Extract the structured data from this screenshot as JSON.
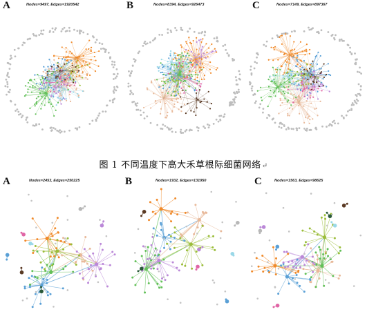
{
  "figure": {
    "caption": "图 1  不同温度下高大禾草根际细菌网络",
    "caption_end_mark": "↵",
    "module_colors": [
      "#5aa0d6",
      "#e8b99a",
      "#62c058",
      "#f08a2a",
      "#9bbd3a",
      "#bb88d8",
      "#5a3a24",
      "#e066a6",
      "#9ad8e8",
      "#2b5a3a",
      "#b8b8b8"
    ],
    "top_row": [
      {
        "label": "A",
        "stats": "Nodes=9497, Edges=1920542"
      },
      {
        "label": "B",
        "stats": "Nodes=8394, Edges=926473"
      },
      {
        "label": "C",
        "stats": "Nodes=7149, Edges=897367"
      }
    ],
    "bottom_row": [
      {
        "label": "A",
        "stats": "Nodes=2453, Edges=250225"
      },
      {
        "label": "B",
        "stats": "Nodes=1932, Edges=131950"
      },
      {
        "label": "C",
        "stats": "Nodes=1563, Edges=98625"
      }
    ]
  }
}
